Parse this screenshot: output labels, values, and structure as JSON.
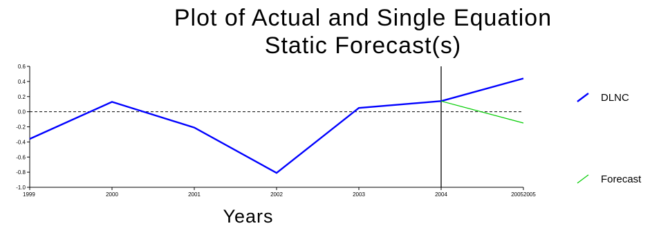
{
  "chart_data": {
    "type": "line",
    "title_lines": [
      "Plot of Actual and Single Equation",
      "Static Forecast(s)"
    ],
    "xlabel": "Years",
    "ylabel": "",
    "x_ticks": [
      "1999",
      "2000",
      "2001",
      "2002",
      "2003",
      "2004",
      "20052005"
    ],
    "y_ticks": [
      "0.6",
      "0.4",
      "0.2",
      "0.0",
      "-0.2",
      "-0.4",
      "-0.6",
      "-0.8",
      "-1.0"
    ],
    "xlim": [
      1999,
      2005
    ],
    "ylim": [
      -1.0,
      0.6
    ],
    "series": [
      {
        "name": "DLNC",
        "color": "#0000ff",
        "x": [
          1999,
          2000,
          2001,
          2002,
          2003,
          2004,
          2005
        ],
        "y": [
          -0.36,
          0.13,
          -0.21,
          -0.81,
          0.05,
          0.14,
          0.44
        ]
      },
      {
        "name": "Forecast",
        "color": "#00cc00",
        "x": [
          2004,
          2005
        ],
        "y": [
          0.14,
          -0.15
        ]
      }
    ],
    "reference_lines": {
      "horizontal_dashed_y": 0.0,
      "vertical_solid_x": 2004
    },
    "legend_position": "right"
  }
}
